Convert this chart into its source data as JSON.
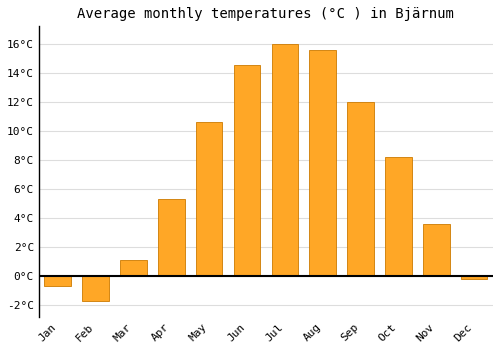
{
  "months": [
    "Jan",
    "Feb",
    "Mar",
    "Apr",
    "May",
    "Jun",
    "Jul",
    "Aug",
    "Sep",
    "Oct",
    "Nov",
    "Dec"
  ],
  "values": [
    -0.7,
    -1.7,
    1.1,
    5.3,
    10.6,
    14.5,
    16.0,
    15.6,
    12.0,
    8.2,
    3.6,
    -0.2
  ],
  "bar_color": "#FFA726",
  "bar_edge_color": "#CC7A00",
  "title": "Average monthly temperatures (°C ) in Bjärnum",
  "ylabel_ticks": [
    "-2°C",
    "0°C",
    "2°C",
    "4°C",
    "6°C",
    "8°C",
    "10°C",
    "12°C",
    "14°C",
    "16°C"
  ],
  "ytick_values": [
    -2,
    0,
    2,
    4,
    6,
    8,
    10,
    12,
    14,
    16
  ],
  "ylim": [
    -2.8,
    17.2
  ],
  "xlim": [
    -0.5,
    11.5
  ],
  "background_color": "#ffffff",
  "grid_color": "#dddddd",
  "title_fontsize": 10,
  "tick_fontsize": 8,
  "zero_line_color": "#000000",
  "bar_width": 0.7
}
